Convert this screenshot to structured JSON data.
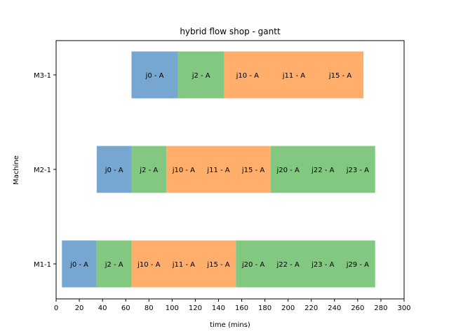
{
  "chart_data": {
    "type": "gantt",
    "title": "hybrid flow shop - gantt",
    "xlabel": "time (mins)",
    "ylabel": "Machine",
    "xlim": [
      0,
      300
    ],
    "xticks": [
      0,
      20,
      40,
      60,
      80,
      100,
      120,
      140,
      160,
      180,
      200,
      220,
      240,
      260,
      280,
      300
    ],
    "grid": false,
    "categories": [
      "M1-1",
      "M2-1",
      "M3-1"
    ],
    "colors": {
      "blue": "#77a7d0",
      "green": "#82c880",
      "orange": "#ffae6c"
    },
    "segments": [
      {
        "machine": "M1-1",
        "start": 5,
        "end": 35,
        "color": "blue",
        "labels": [
          "j0 - A"
        ]
      },
      {
        "machine": "M1-1",
        "start": 35,
        "end": 65,
        "color": "green",
        "labels": [
          "j2 - A"
        ]
      },
      {
        "machine": "M1-1",
        "start": 65,
        "end": 155,
        "color": "orange",
        "labels": [
          "j10 - A",
          "j11 - A",
          "j15 - A"
        ]
      },
      {
        "machine": "M1-1",
        "start": 155,
        "end": 275,
        "color": "green",
        "labels": [
          "j20 - A",
          "j22 - A",
          "j23 - A",
          "j29 - A"
        ]
      },
      {
        "machine": "M2-1",
        "start": 35,
        "end": 65,
        "color": "blue",
        "labels": [
          "j0 - A"
        ]
      },
      {
        "machine": "M2-1",
        "start": 65,
        "end": 95,
        "color": "green",
        "labels": [
          "j2 - A"
        ]
      },
      {
        "machine": "M2-1",
        "start": 95,
        "end": 185,
        "color": "orange",
        "labels": [
          "j10 - A",
          "j11 - A",
          "j15 - A"
        ]
      },
      {
        "machine": "M2-1",
        "start": 185,
        "end": 275,
        "color": "green",
        "labels": [
          "j20 - A",
          "j22 - A",
          "j23 - A"
        ]
      },
      {
        "machine": "M3-1",
        "start": 65,
        "end": 105,
        "color": "blue",
        "labels": [
          "j0 - A"
        ]
      },
      {
        "machine": "M3-1",
        "start": 105,
        "end": 145,
        "color": "green",
        "labels": [
          "j2 - A"
        ]
      },
      {
        "machine": "M3-1",
        "start": 145,
        "end": 265,
        "color": "orange",
        "labels": [
          "j10 - A",
          "j11 - A",
          "j15 - A"
        ]
      }
    ]
  }
}
